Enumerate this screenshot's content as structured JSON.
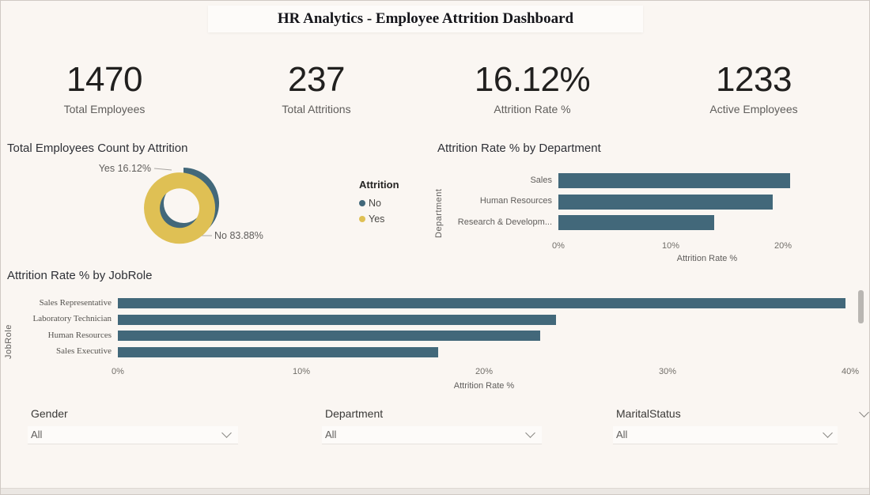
{
  "title": "HR Analytics - Employee Attrition Dashboard",
  "kpis": [
    {
      "value": "1470",
      "label": "Total Employees"
    },
    {
      "value": "237",
      "label": "Total Attritions"
    },
    {
      "value": "16.12%",
      "label": "Attrition Rate %"
    },
    {
      "value": "1233",
      "label": "Active Employees"
    }
  ],
  "colors": {
    "background": "#faf6f2",
    "bar_teal": "#42687a",
    "accent_gold": "#dfc054",
    "text_dark": "#252423",
    "text_gray": "#5f5d5b"
  },
  "chart_data": [
    {
      "name": "total-employees-count-by-attrition",
      "type": "pie",
      "donut": true,
      "title": "Total Employees Count by Attrition",
      "legend_title": "Attrition",
      "legend_position": "right",
      "slices": [
        {
          "label": "No",
          "value": 83.88,
          "color": "#42687a",
          "callout": "No 83.88%"
        },
        {
          "label": "Yes",
          "value": 16.12,
          "color": "#dfc054",
          "callout": "Yes 16.12%"
        }
      ]
    },
    {
      "name": "attrition-rate-by-department",
      "type": "bar",
      "orientation": "horizontal",
      "title": "Attrition Rate % by Department",
      "xlabel": "Attrition Rate %",
      "ylabel": "Department",
      "categories": [
        "Sales",
        "Human Resources",
        "Research & Developm..."
      ],
      "values": [
        20.63,
        19.05,
        13.84
      ],
      "xlim": [
        0,
        22
      ],
      "ticks": [
        {
          "value": 0,
          "label": "0%"
        },
        {
          "value": 10,
          "label": "10%"
        },
        {
          "value": 20,
          "label": "20%"
        }
      ],
      "bar_color": "#42687a",
      "grid": false
    },
    {
      "name": "attrition-rate-by-jobrole",
      "type": "bar",
      "orientation": "horizontal",
      "title": "Attrition Rate % by JobRole",
      "xlabel": "Attrition Rate %",
      "ylabel": "JobRole",
      "categories": [
        "Sales Representative",
        "Laboratory Technician",
        "Human Resources",
        "Sales Executive"
      ],
      "values": [
        39.76,
        23.94,
        23.08,
        17.48
      ],
      "xlim": [
        0,
        41
      ],
      "ticks": [
        {
          "value": 0,
          "label": "0%"
        },
        {
          "value": 10,
          "label": "10%"
        },
        {
          "value": 20,
          "label": "20%"
        },
        {
          "value": 30,
          "label": "30%"
        },
        {
          "value": 40,
          "label": "40%"
        }
      ],
      "bar_color": "#42687a",
      "has_scrollbar": true,
      "grid": false
    }
  ],
  "slicers": [
    {
      "label": "Gender",
      "value": "All"
    },
    {
      "label": "Department",
      "value": "All"
    },
    {
      "label": "MaritalStatus",
      "value": "All"
    }
  ]
}
